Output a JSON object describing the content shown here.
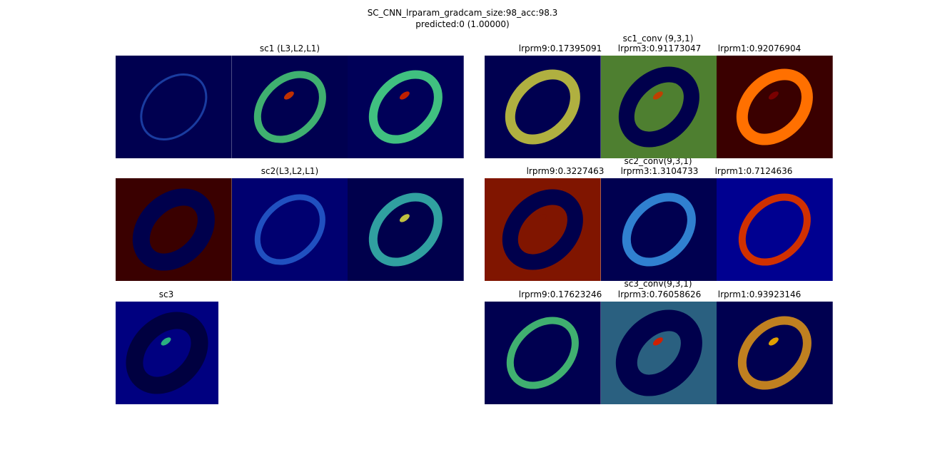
{
  "title": [
    "SC_CNN_lrparam_gradcam_size:98_acc:98.3",
    "predicted:0 (1.00000)"
  ],
  "panels": [
    {
      "title": "sc1 (L3,L2,L1)"
    },
    {
      "title": "sc1_conv (9,3,1)",
      "subtitles": [
        "lrprm9:0.17395091",
        "lrprm3:0.91173047",
        "lrprm1:0.92076904"
      ]
    },
    {
      "title": "sc2(L3,L2,L1)"
    },
    {
      "title": "sc2_conv(9,3,1)",
      "subtitles": [
        "lrprm9:0.3227463",
        "lrprm3:1.3104733",
        "lrprm1:0.7124636"
      ]
    },
    {
      "title": "sc3"
    },
    {
      "title": "sc3_conv(9,3,1)",
      "subtitles": [
        "lrprm9:0.17623246",
        "lrprm3:0.76058626",
        "lrprm1:0.93923146"
      ]
    }
  ]
}
